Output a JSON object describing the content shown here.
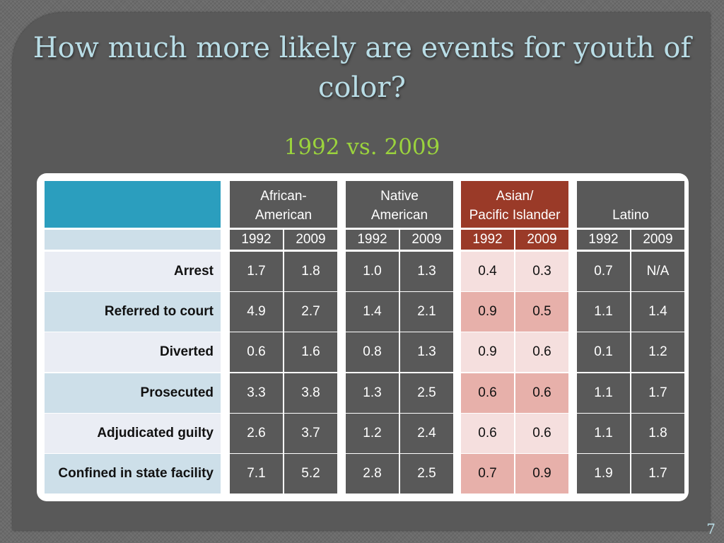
{
  "title": "How much more likely are events for youth of color?",
  "subtitle": "1992 vs. 2009",
  "page_number": "7",
  "table": {
    "groups": [
      {
        "name": "African-\nAmerican",
        "years": [
          "1992",
          "2009"
        ],
        "highlight": false
      },
      {
        "name": "Native\nAmerican",
        "years": [
          "1992",
          "2009"
        ],
        "highlight": false
      },
      {
        "name": "Asian/\nPacific Islander",
        "years": [
          "1992",
          "2009"
        ],
        "highlight": true
      },
      {
        "name": "Latino",
        "years": [
          "1992",
          "2009"
        ],
        "highlight": false
      }
    ],
    "rows": [
      {
        "label": "Arrest",
        "values": [
          "1.7",
          "1.8",
          "1.0",
          "1.3",
          "0.4",
          "0.3",
          "0.7",
          "N/A"
        ]
      },
      {
        "label": "Referred to court",
        "values": [
          "4.9",
          "2.7",
          "1.4",
          "2.1",
          "0.9",
          "0.5",
          "1.1",
          "1.4"
        ]
      },
      {
        "label": "Diverted",
        "values": [
          "0.6",
          "1.6",
          "0.8",
          "1.3",
          "0.9",
          "0.6",
          "0.1",
          "1.2"
        ]
      },
      {
        "label": "Prosecuted",
        "values": [
          "3.3",
          "3.8",
          "1.3",
          "2.5",
          "0.6",
          "0.6",
          "1.1",
          "1.7"
        ]
      },
      {
        "label": "Adjudicated guilty",
        "values": [
          "2.6",
          "3.7",
          "1.2",
          "2.4",
          "0.6",
          "0.6",
          "1.1",
          "1.8"
        ]
      },
      {
        "label": "Confined in state facility",
        "values": [
          "7.1",
          "5.2",
          "2.8",
          "2.5",
          "0.7",
          "0.9",
          "1.9",
          "1.7"
        ]
      }
    ]
  },
  "colors": {
    "header_blue": "#2b9ebe",
    "highlight_header": "#9a3a28",
    "row_light": "#eaedf4",
    "row_blue": "#cddfe9",
    "highlight_light": "#f5dfde",
    "highlight_dark": "#e7b0aa"
  }
}
